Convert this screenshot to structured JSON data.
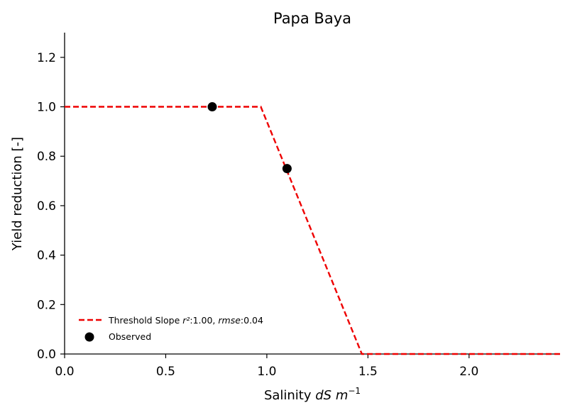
{
  "chart_data": {
    "type": "line",
    "title": "Papa Baya",
    "xlabel_text": "Salinity ",
    "xlabel_math": "dS m",
    "xlabel_sup": "−1",
    "ylabel": "Yield reduction [-]",
    "xlim": [
      0.0,
      2.45
    ],
    "ylim": [
      0.0,
      1.3
    ],
    "xticks": [
      0.0,
      0.5,
      1.0,
      1.5,
      2.0
    ],
    "xtick_labels": [
      "0.0",
      "0.5",
      "1.0",
      "1.5",
      "2.0"
    ],
    "yticks": [
      0.0,
      0.2,
      0.4,
      0.6,
      0.8,
      1.0,
      1.2
    ],
    "ytick_labels": [
      "0.0",
      "0.2",
      "0.4",
      "0.6",
      "0.8",
      "1.0",
      "1.2"
    ],
    "grid": false,
    "legend_position": "lower-left",
    "series": [
      {
        "kind": "line",
        "style": "dashed",
        "color": "#ee0000",
        "legend_prefix": "Threshold Slope ",
        "legend_r2_label": "r²",
        "legend_r2_value": ":1.00, ",
        "legend_rmse_label": "rmse",
        "legend_rmse_value": ":0.04",
        "x": [
          0.0,
          0.97,
          1.47,
          2.45
        ],
        "y": [
          1.0,
          1.0,
          0.0,
          0.0
        ]
      },
      {
        "kind": "scatter",
        "color": "#000000",
        "name": "Observed",
        "x": [
          0.73,
          1.1
        ],
        "y": [
          1.0,
          0.75
        ]
      }
    ]
  }
}
